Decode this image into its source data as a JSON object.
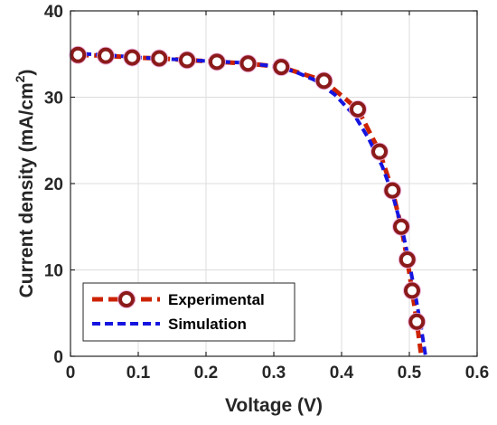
{
  "chart_data": {
    "type": "line",
    "xlabel": "Voltage (V)",
    "ylabel_main": "Current density (mA/cm",
    "ylabel_sup": "2",
    "ylabel_close": ")",
    "xlim": [
      0,
      0.6
    ],
    "ylim": [
      0,
      40
    ],
    "xticks": [
      "0",
      "0.1",
      "0.2",
      "0.3",
      "0.4",
      "0.5",
      "0.6"
    ],
    "yticks": [
      "0",
      "10",
      "20",
      "30",
      "40"
    ],
    "grid": true,
    "legend_position": "bottom-left",
    "series": [
      {
        "name": "Experimental",
        "style": "dashed line with circle markers",
        "color": "#cc2200",
        "marker_fill": "#8b1a1a",
        "marker_glow": "#f0b0e0",
        "x": [
          0.011,
          0.052,
          0.091,
          0.131,
          0.172,
          0.216,
          0.262,
          0.311,
          0.374,
          0.424,
          0.456,
          0.475,
          0.488,
          0.497,
          0.504,
          0.511
        ],
        "y": [
          34.9,
          34.8,
          34.6,
          34.5,
          34.3,
          34.1,
          33.9,
          33.5,
          31.9,
          28.6,
          23.7,
          19.2,
          15.0,
          11.2,
          7.6,
          4.0
        ]
      },
      {
        "name": "Simulation",
        "style": "dashed line",
        "color": "#1515e0",
        "x": [
          0.0,
          0.05,
          0.1,
          0.15,
          0.2,
          0.25,
          0.3,
          0.33,
          0.36,
          0.39,
          0.42,
          0.44,
          0.46,
          0.475,
          0.49,
          0.5,
          0.51,
          0.518,
          0.524
        ],
        "y": [
          35.1,
          34.9,
          34.6,
          34.4,
          34.2,
          34.0,
          33.6,
          33.0,
          32.0,
          30.3,
          27.8,
          25.2,
          22.0,
          18.8,
          14.5,
          10.8,
          6.6,
          3.0,
          0.0
        ]
      }
    ]
  }
}
